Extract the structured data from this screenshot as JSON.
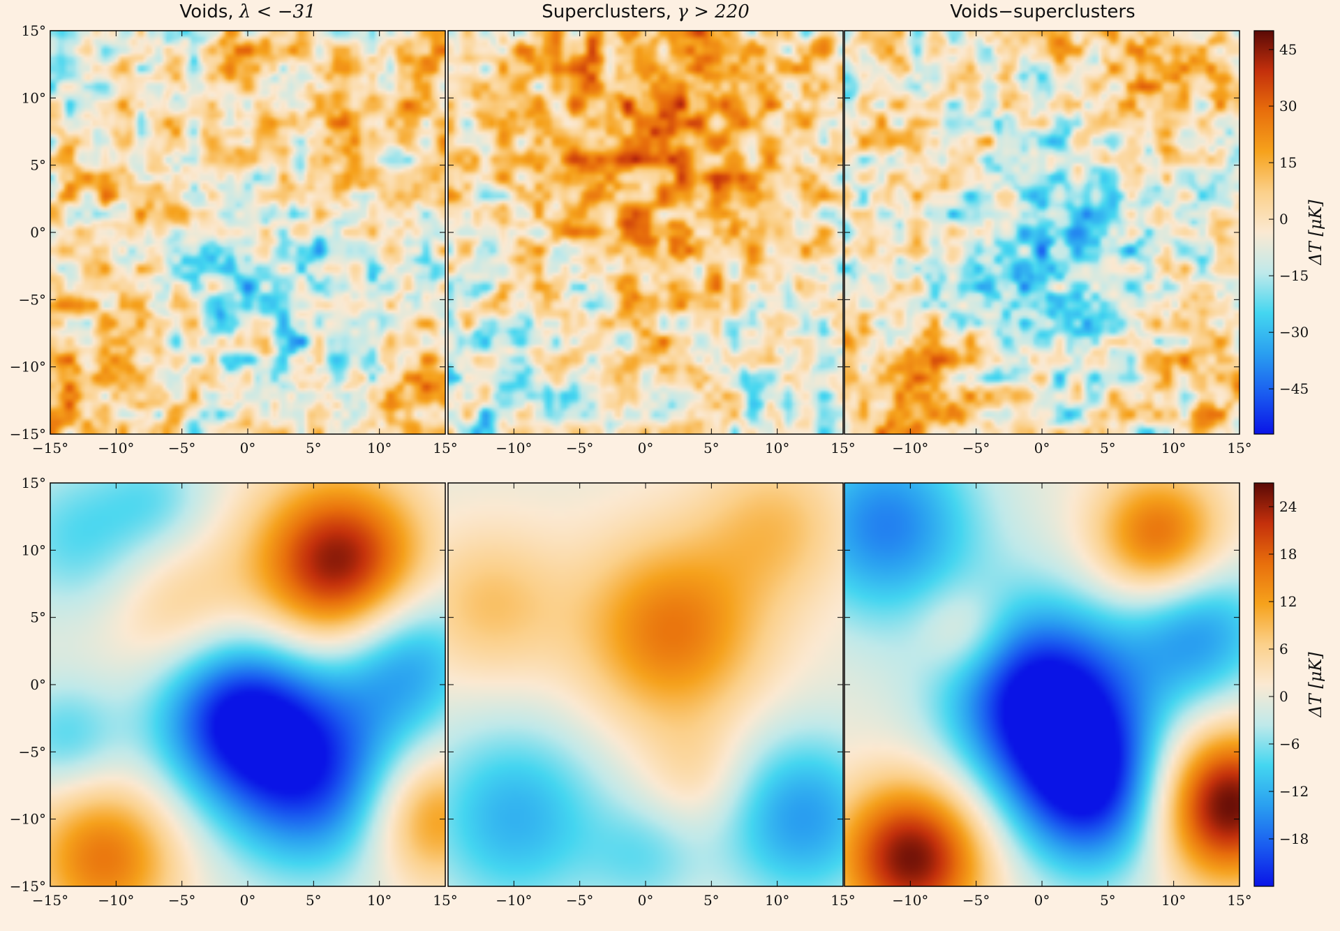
{
  "titles": {
    "voids": "Voids, λ < −31",
    "voids_prefix": "Voids, ",
    "voids_math": "λ < −31",
    "superclusters_prefix": "Superclusters, ",
    "superclusters_math": "γ > 220",
    "difference": "Voids−superclusters"
  },
  "colors": {
    "background": "#fdf0e2",
    "cmap": [
      "#0a14e6",
      "#1a5cf0",
      "#2a9ff0",
      "#44d6f0",
      "#bfe9ea",
      "#fbe9d2",
      "#fbd08a",
      "#f6a21c",
      "#e86f0c",
      "#c4300c",
      "#5a0a06"
    ]
  },
  "chart_data": [
    {
      "type": "heatmap",
      "panel": "top-left",
      "title": "Voids, λ < −31",
      "xticks": [
        "−15°",
        "−10°",
        "−5°",
        "0°",
        "5°",
        "10°",
        "15°"
      ],
      "yticks": [
        "15°",
        "10°",
        "5°",
        "0°",
        "−5°",
        "−10°",
        "−15°"
      ],
      "xlim": [
        -15,
        15
      ],
      "ylim": [
        -15,
        15
      ],
      "seed": 11,
      "large_scale": [
        {
          "x": 8,
          "y": 9,
          "amp": 18,
          "s": 5
        },
        {
          "x": 3,
          "y": -4,
          "amp": -20,
          "s": 7
        },
        {
          "x": -12,
          "y": -13,
          "amp": 14,
          "s": 4
        },
        {
          "x": 13,
          "y": -12,
          "amp": 12,
          "s": 4
        },
        {
          "x": -9,
          "y": 3,
          "amp": 8,
          "s": 4
        },
        {
          "x": -10,
          "y": 13,
          "amp": -6,
          "s": 4
        }
      ]
    },
    {
      "type": "heatmap",
      "panel": "top-middle",
      "title": "Superclusters, γ > 220",
      "xticks": [
        "−10°",
        "−5°",
        "0°",
        "5°",
        "10°",
        "15°"
      ],
      "xlim": [
        -15,
        15
      ],
      "ylim": [
        -15,
        15
      ],
      "seed": 23,
      "large_scale": [
        {
          "x": 2,
          "y": 5,
          "amp": 16,
          "s": 8
        },
        {
          "x": -12,
          "y": -11,
          "amp": -14,
          "s": 5
        },
        {
          "x": 13,
          "y": -9,
          "amp": -12,
          "s": 5
        },
        {
          "x": 0,
          "y": 10,
          "amp": 8,
          "s": 6
        }
      ]
    },
    {
      "type": "heatmap",
      "panel": "top-right",
      "title": "Voids−superclusters",
      "xticks": [
        "−10°",
        "−5°",
        "0°",
        "5°",
        "10°",
        "15°"
      ],
      "xlim": [
        -15,
        15
      ],
      "ylim": [
        -15,
        15
      ],
      "seed": 37,
      "large_scale": [
        {
          "x": 2,
          "y": -2,
          "amp": -24,
          "s": 7
        },
        {
          "x": -10,
          "y": -13,
          "amp": 20,
          "s": 4
        },
        {
          "x": 13,
          "y": -9,
          "amp": 16,
          "s": 4
        },
        {
          "x": 9,
          "y": 11,
          "amp": 12,
          "s": 4
        },
        {
          "x": -5,
          "y": 4,
          "amp": 6,
          "s": 3
        }
      ]
    },
    {
      "type": "heatmap",
      "panel": "bottom-left",
      "xticks": [
        "−15°",
        "−10°",
        "−5°",
        "0°",
        "5°",
        "10°",
        "15°"
      ],
      "yticks": [
        "15°",
        "10°",
        "5°",
        "0°",
        "−5°",
        "−10°",
        "−15°"
      ],
      "xlim": [
        -15,
        15
      ],
      "ylim": [
        -15,
        15
      ],
      "blobs": [
        {
          "x": 7,
          "y": 9,
          "amp": 26,
          "s": 4.5
        },
        {
          "x": -1,
          "y": -2,
          "amp": -22,
          "s": 4.5
        },
        {
          "x": 5,
          "y": -7,
          "amp": -20,
          "s": 5
        },
        {
          "x": 12,
          "y": 2,
          "amp": -14,
          "s": 4
        },
        {
          "x": -11,
          "y": -13,
          "amp": 16,
          "s": 4
        },
        {
          "x": 14,
          "y": -10,
          "amp": 14,
          "s": 3.5
        },
        {
          "x": -5,
          "y": 5,
          "amp": 8,
          "s": 4
        },
        {
          "x": -13,
          "y": 11,
          "amp": -8,
          "s": 4
        },
        {
          "x": -14,
          "y": -4,
          "amp": -8,
          "s": 3
        },
        {
          "x": -7,
          "y": 14,
          "amp": -6,
          "s": 3
        }
      ]
    },
    {
      "type": "heatmap",
      "panel": "bottom-middle",
      "xticks": [
        "−10°",
        "−5°",
        "0°",
        "5°",
        "10°",
        "15°"
      ],
      "xlim": [
        -15,
        15
      ],
      "ylim": [
        -15,
        15
      ],
      "blobs": [
        {
          "x": 2,
          "y": 4,
          "amp": 16,
          "s": 5
        },
        {
          "x": -10,
          "y": -10,
          "amp": -12,
          "s": 5
        },
        {
          "x": 12,
          "y": -10,
          "amp": -14,
          "s": 4.5
        },
        {
          "x": -12,
          "y": 6,
          "amp": 8,
          "s": 4
        },
        {
          "x": 10,
          "y": 12,
          "amp": 8,
          "s": 4
        },
        {
          "x": 4,
          "y": -7,
          "amp": 5,
          "s": 3
        },
        {
          "x": 0,
          "y": -13,
          "amp": -6,
          "s": 3
        }
      ]
    },
    {
      "type": "heatmap",
      "panel": "bottom-right",
      "xticks": [
        "−10°",
        "−5°",
        "0°",
        "5°",
        "10°",
        "15°"
      ],
      "xlim": [
        -15,
        15
      ],
      "ylim": [
        -15,
        15
      ],
      "blobs": [
        {
          "x": 0,
          "y": -1,
          "amp": -26,
          "s": 5
        },
        {
          "x": 4,
          "y": -8,
          "amp": -22,
          "s": 4.5
        },
        {
          "x": -12,
          "y": 12,
          "amp": -16,
          "s": 5
        },
        {
          "x": 12,
          "y": 4,
          "amp": -14,
          "s": 4
        },
        {
          "x": -10,
          "y": -13,
          "amp": 26,
          "s": 4
        },
        {
          "x": 14,
          "y": -9,
          "amp": 28,
          "s": 4
        },
        {
          "x": 9,
          "y": 11,
          "amp": 18,
          "s": 3.5
        },
        {
          "x": -6,
          "y": 4,
          "amp": 7,
          "s": 2.5
        }
      ]
    }
  ],
  "colorbars": [
    {
      "row": "top",
      "label": "ΔT [μK]",
      "min": -57,
      "max": 50,
      "ticks": [
        45,
        30,
        15,
        0,
        -15,
        -30,
        -45
      ],
      "tick_labels": [
        "45",
        "30",
        "15",
        "0",
        "−15",
        "−30",
        "−45"
      ]
    },
    {
      "row": "bottom",
      "label": "ΔT [μK]",
      "min": -24,
      "max": 27,
      "ticks": [
        24,
        18,
        12,
        6,
        0,
        -6,
        -12,
        -18
      ],
      "tick_labels": [
        "24",
        "18",
        "12",
        "6",
        "0",
        "−6",
        "−12",
        "−18"
      ]
    }
  ]
}
